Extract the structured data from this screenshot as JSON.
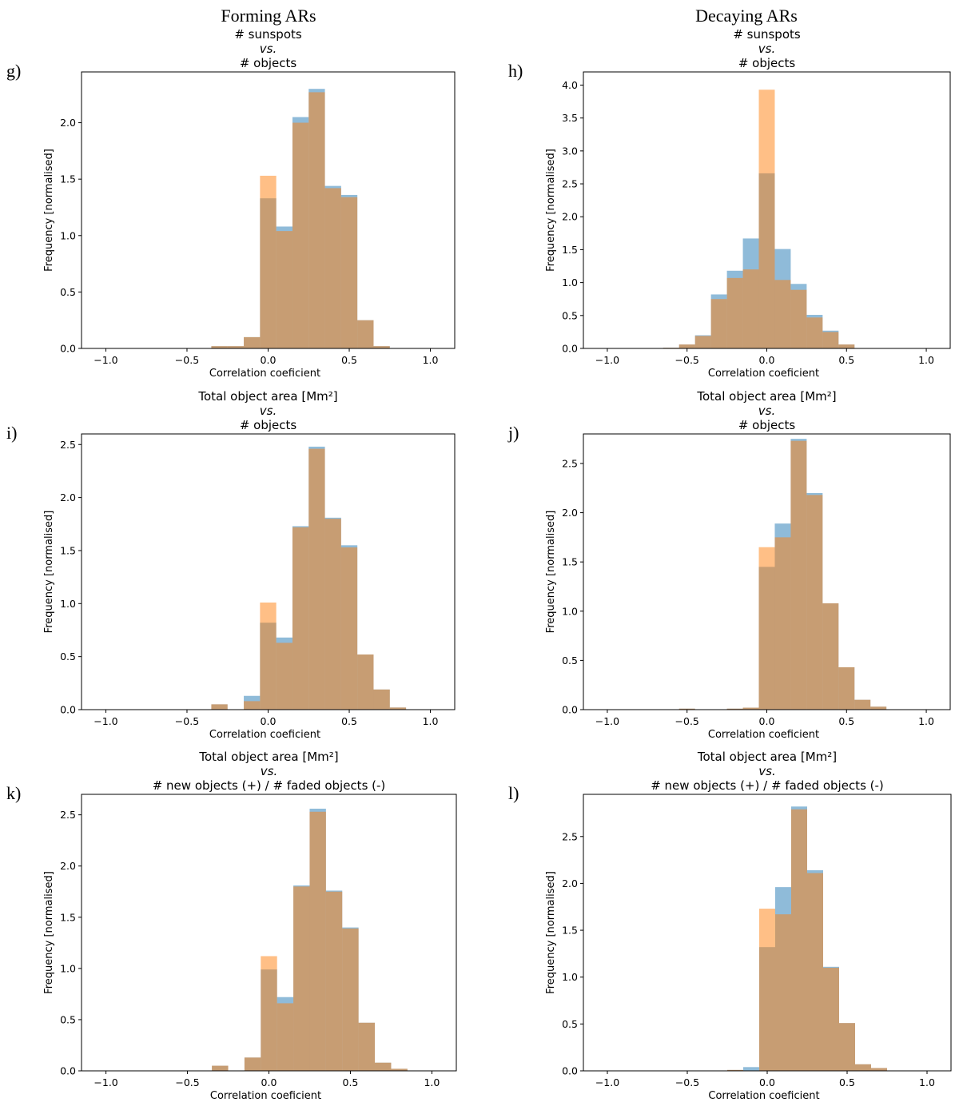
{
  "column_titles": [
    "Forming ARs",
    "Decaying ARs"
  ],
  "colors": {
    "blue": "#1f77b4",
    "orange": "#ff7f0e",
    "axis": "#000000"
  },
  "chart_data": [
    {
      "type": "bar",
      "panel": "g)",
      "title": [
        "# sunspots",
        "vs.",
        "# objects"
      ],
      "xlabel": "Correlation coeficient",
      "ylabel": "Frequency [normalised]",
      "xlim": [
        -1.15,
        1.15
      ],
      "ylim": [
        0,
        2.45
      ],
      "xticks": [
        -1.0,
        -0.5,
        0.0,
        0.5,
        1.0
      ],
      "xtick_labels": [
        "−1.0",
        "−0.5",
        "0.0",
        "0.5",
        "1.0"
      ],
      "yticks": [
        0,
        0.5,
        1.0,
        1.5,
        2.0
      ],
      "ytick_labels": [
        "0.0",
        "0.5",
        "1.0",
        "1.5",
        "2.0"
      ],
      "bin_edges": [
        -0.35,
        -0.25,
        -0.15,
        -0.05,
        0.05,
        0.15,
        0.25,
        0.35,
        0.45,
        0.55,
        0.65,
        0.75
      ],
      "series": [
        {
          "name": "blue",
          "values": [
            0.02,
            0.02,
            0.1,
            1.33,
            1.08,
            2.05,
            2.3,
            1.44,
            1.36,
            0.25,
            0.02
          ]
        },
        {
          "name": "orange",
          "values": [
            0.02,
            0.02,
            0.1,
            1.53,
            1.04,
            2.0,
            2.27,
            1.42,
            1.34,
            0.25,
            0.02
          ]
        }
      ]
    },
    {
      "type": "bar",
      "panel": "h)",
      "title": [
        "# sunspots",
        "vs.",
        "# objects"
      ],
      "xlabel": "Correlation coeficient",
      "ylabel": "Frequency [normalised]",
      "xlim": [
        -1.15,
        1.15
      ],
      "ylim": [
        0,
        4.2
      ],
      "xticks": [
        -1.0,
        -0.5,
        0.0,
        0.5,
        1.0
      ],
      "xtick_labels": [
        "−1.0",
        "−0.5",
        "0.0",
        "0.5",
        "1.0"
      ],
      "yticks": [
        0,
        0.5,
        1.0,
        1.5,
        2.0,
        2.5,
        3.0,
        3.5,
        4.0
      ],
      "ytick_labels": [
        "0.0",
        "0.5",
        "1.0",
        "1.5",
        "2.0",
        "2.5",
        "3.0",
        "3.5",
        "4.0"
      ],
      "bin_edges": [
        -0.65,
        -0.55,
        -0.45,
        -0.35,
        -0.25,
        -0.15,
        -0.05,
        0.05,
        0.15,
        0.25,
        0.35,
        0.45,
        0.55
      ],
      "series": [
        {
          "name": "blue",
          "values": [
            0.01,
            0.06,
            0.2,
            0.82,
            1.18,
            1.67,
            2.66,
            1.51,
            0.98,
            0.51,
            0.27,
            0.06
          ]
        },
        {
          "name": "orange",
          "values": [
            0.01,
            0.06,
            0.19,
            0.75,
            1.07,
            1.2,
            3.93,
            1.04,
            0.89,
            0.47,
            0.25,
            0.06
          ]
        }
      ]
    },
    {
      "type": "bar",
      "panel": "i)",
      "title": [
        "Total object area [Mm²]",
        "vs.",
        "# objects"
      ],
      "xlabel": "Correlation coeficient",
      "ylabel": "Frequency [normalised]",
      "xlim": [
        -1.15,
        1.15
      ],
      "ylim": [
        0,
        2.6
      ],
      "xticks": [
        -1.0,
        -0.5,
        0.0,
        0.5,
        1.0
      ],
      "xtick_labels": [
        "−1.0",
        "−0.5",
        "0.0",
        "0.5",
        "1.0"
      ],
      "yticks": [
        0,
        0.5,
        1.0,
        1.5,
        2.0,
        2.5
      ],
      "ytick_labels": [
        "0.0",
        "0.5",
        "1.0",
        "1.5",
        "2.0",
        "2.5"
      ],
      "bin_edges": [
        -0.35,
        -0.25,
        -0.15,
        -0.05,
        0.05,
        0.15,
        0.25,
        0.35,
        0.45,
        0.55,
        0.65,
        0.75,
        0.85
      ],
      "series": [
        {
          "name": "blue",
          "values": [
            0.05,
            0.0,
            0.13,
            0.82,
            0.68,
            1.73,
            2.48,
            1.81,
            1.55,
            0.52,
            0.19,
            0.02
          ]
        },
        {
          "name": "orange",
          "values": [
            0.05,
            0.0,
            0.08,
            1.01,
            0.63,
            1.72,
            2.46,
            1.8,
            1.53,
            0.52,
            0.19,
            0.02
          ]
        }
      ]
    },
    {
      "type": "bar",
      "panel": "j)",
      "title": [
        "Total object area [Mm²]",
        "vs.",
        "# objects"
      ],
      "xlabel": "Correlation coeficient",
      "ylabel": "Frequency [normalised]",
      "xlim": [
        -1.15,
        1.15
      ],
      "ylim": [
        0,
        2.8
      ],
      "xticks": [
        -1.0,
        -0.5,
        0.0,
        0.5,
        1.0
      ],
      "xtick_labels": [
        "−1.0",
        "−0.5",
        "0.0",
        "0.5",
        "1.0"
      ],
      "yticks": [
        0,
        0.5,
        1.0,
        1.5,
        2.0,
        2.5
      ],
      "ytick_labels": [
        "0.0",
        "0.5",
        "1.0",
        "1.5",
        "2.0",
        "2.5"
      ],
      "bin_edges": [
        -0.55,
        -0.45,
        -0.35,
        -0.25,
        -0.15,
        -0.05,
        0.05,
        0.15,
        0.25,
        0.35,
        0.45,
        0.55,
        0.65,
        0.75
      ],
      "series": [
        {
          "name": "blue",
          "values": [
            0.01,
            0.0,
            0.0,
            0.01,
            0.02,
            1.45,
            1.89,
            2.75,
            2.2,
            1.08,
            0.43,
            0.1,
            0.03
          ]
        },
        {
          "name": "orange",
          "values": [
            0.01,
            0.0,
            0.0,
            0.01,
            0.02,
            1.65,
            1.75,
            2.73,
            2.18,
            1.08,
            0.43,
            0.1,
            0.03
          ]
        }
      ]
    },
    {
      "type": "bar",
      "panel": "k)",
      "title": [
        "Total object area [Mm²]",
        "vs.",
        "# new objects (+) / # faded objects (-)"
      ],
      "xlabel": "Correlation coeficient",
      "ylabel": "Frequency [normalised]",
      "xlim": [
        -1.15,
        1.15
      ],
      "ylim": [
        0,
        2.7
      ],
      "xticks": [
        -1.0,
        -0.5,
        0.0,
        0.5,
        1.0
      ],
      "xtick_labels": [
        "−1.0",
        "−0.5",
        "0.0",
        "0.5",
        "1.0"
      ],
      "yticks": [
        0,
        0.5,
        1.0,
        1.5,
        2.0,
        2.5
      ],
      "ytick_labels": [
        "0.0",
        "0.5",
        "1.0",
        "1.5",
        "2.0",
        "2.5"
      ],
      "bin_edges": [
        -0.35,
        -0.25,
        -0.15,
        -0.05,
        0.05,
        0.15,
        0.25,
        0.35,
        0.45,
        0.55,
        0.65,
        0.75,
        0.85
      ],
      "series": [
        {
          "name": "blue",
          "values": [
            0.05,
            0.0,
            0.13,
            0.99,
            0.72,
            1.81,
            2.56,
            1.76,
            1.4,
            0.47,
            0.08,
            0.02
          ]
        },
        {
          "name": "orange",
          "values": [
            0.05,
            0.0,
            0.13,
            1.12,
            0.66,
            1.8,
            2.53,
            1.75,
            1.39,
            0.47,
            0.08,
            0.02
          ]
        }
      ]
    },
    {
      "type": "bar",
      "panel": "l)",
      "title": [
        "Total object area [Mm²]",
        "vs.",
        "# new objects (+) / # faded objects (-)"
      ],
      "xlabel": "Correlation coeficient",
      "ylabel": "Frequency [normalised]",
      "xlim": [
        -1.15,
        1.15
      ],
      "ylim": [
        0,
        2.95
      ],
      "xticks": [
        -1.0,
        -0.5,
        0.0,
        0.5,
        1.0
      ],
      "xtick_labels": [
        "−1.0",
        "−0.5",
        "0.0",
        "0.5",
        "1.0"
      ],
      "yticks": [
        0,
        0.5,
        1.0,
        1.5,
        2.0,
        2.5
      ],
      "ytick_labels": [
        "0.0",
        "0.5",
        "1.0",
        "1.5",
        "2.0",
        "2.5"
      ],
      "bin_edges": [
        -0.25,
        -0.15,
        -0.05,
        0.05,
        0.15,
        0.25,
        0.35,
        0.45,
        0.55,
        0.65,
        0.75
      ],
      "series": [
        {
          "name": "blue",
          "values": [
            0.01,
            0.04,
            1.32,
            1.96,
            2.82,
            2.14,
            1.11,
            0.51,
            0.07,
            0.03
          ]
        },
        {
          "name": "orange",
          "values": [
            0.01,
            0.0,
            1.73,
            1.67,
            2.79,
            2.11,
            1.1,
            0.51,
            0.07,
            0.03
          ]
        }
      ]
    }
  ]
}
